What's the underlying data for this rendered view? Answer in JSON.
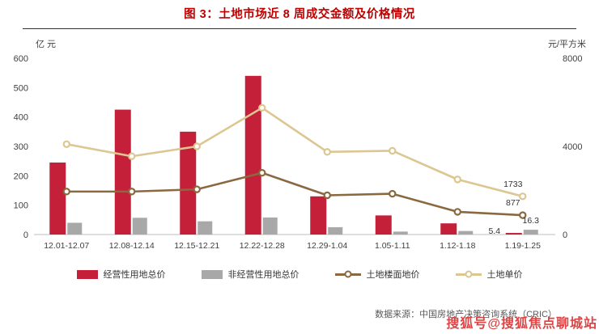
{
  "title": "图 3：土地市场近 8 周成交金额及价格情况",
  "footer": {
    "source": "数据来源：中国房地产决策咨询系统（CRIC）",
    "watermark": "搜狐号@搜狐焦点聊城站"
  },
  "chart_data": {
    "type": "bar+line combo",
    "categories": [
      "12.01-12.07",
      "12.08-12.14",
      "12.15-12.21",
      "12.22-12.28",
      "12.29-1.04",
      "1.05-1.11",
      "1.12-1.18",
      "1.19-1.25"
    ],
    "left_axis": {
      "label": "亿 元",
      "ticks": [
        0,
        100,
        200,
        300,
        400,
        500,
        600
      ],
      "max": 600
    },
    "right_axis": {
      "label": "元/平方米",
      "ticks": [
        0,
        4000,
        8000
      ],
      "max": 8000
    },
    "grid": false,
    "legend_position": "bottom",
    "series": [
      {
        "name": "经营性用地总价",
        "type": "bar",
        "axis": "left",
        "color": "#c4203a",
        "values": [
          245,
          425,
          350,
          540,
          130,
          65,
          38,
          5.4
        ]
      },
      {
        "name": "非经营性用地总价",
        "type": "bar",
        "axis": "left",
        "color": "#a8a8a8",
        "values": [
          40,
          57,
          45,
          58,
          25,
          10,
          12,
          16.3
        ]
      },
      {
        "name": "土地楼面地价",
        "type": "line",
        "axis": "right",
        "color": "#8a6840",
        "values": [
          1950,
          1950,
          2050,
          2800,
          1780,
          1850,
          1030,
          877
        ]
      },
      {
        "name": "土地单价",
        "type": "line",
        "axis": "right",
        "color": "#dcc692",
        "values": [
          4100,
          3550,
          4000,
          5750,
          3750,
          3800,
          2500,
          1733
        ]
      }
    ],
    "annotations": [
      "5.4",
      "16.3",
      "877",
      "1733"
    ]
  }
}
